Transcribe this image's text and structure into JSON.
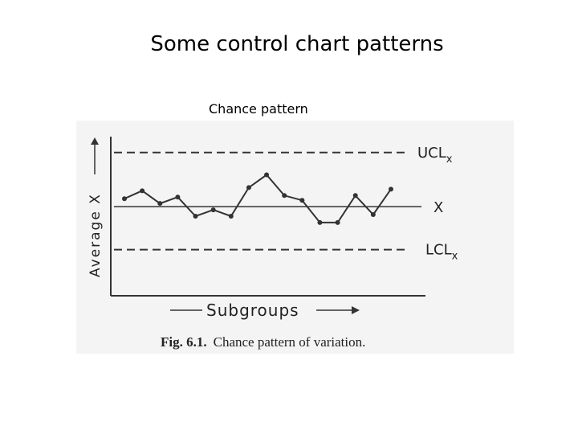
{
  "slide": {
    "title": "Some control chart patterns",
    "subtitle": "Chance pattern"
  },
  "chart_data": {
    "type": "line",
    "title": "",
    "caption_num": "Fig. 6.1.",
    "caption_text": "Chance pattern of variation.",
    "xlabel": "Subgroups",
    "ylabel": "Average X",
    "ylim": [
      0,
      10
    ],
    "grid": false,
    "center_line": {
      "label": "X",
      "value": 5.6
    },
    "ucl": {
      "label": "UCL",
      "subscript": "x",
      "value": 9.0
    },
    "lcl": {
      "label": "LCL",
      "subscript": "x",
      "value": 2.9
    },
    "series": [
      {
        "values": [
          6.1,
          6.6,
          5.8,
          6.2,
          5.0,
          5.4,
          5.0,
          6.8,
          7.6,
          6.3,
          6.0,
          4.6,
          4.6,
          6.3,
          5.1,
          6.7
        ]
      }
    ],
    "colors": {
      "ink": "#333333",
      "background": "#ffffff"
    }
  }
}
